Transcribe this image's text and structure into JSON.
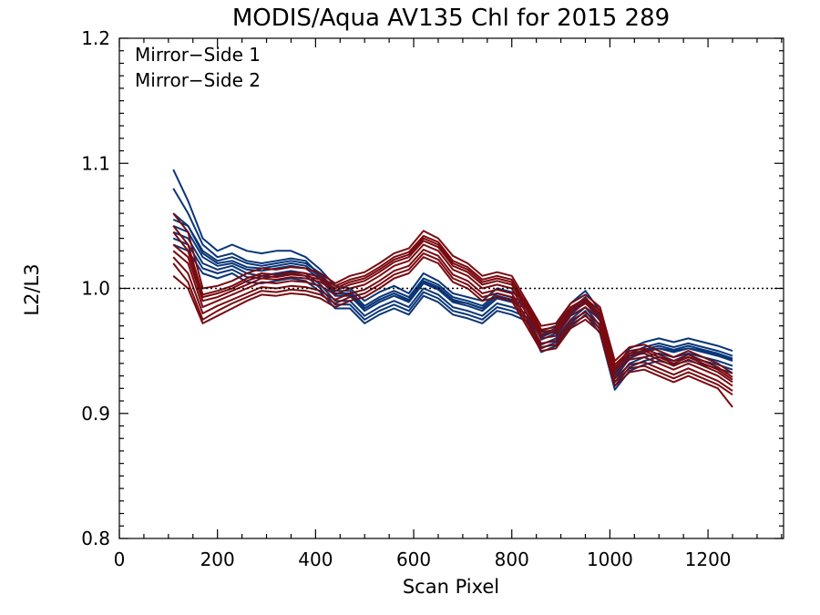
{
  "chart_data": {
    "type": "line",
    "title": "MODIS/Aqua AV135 Chl for 2015 289",
    "xlabel": "Scan Pixel",
    "ylabel": "L2/L3",
    "xlim": [
      0,
      1354
    ],
    "ylim": [
      0.8,
      1.2
    ],
    "xticks": [
      0,
      200,
      400,
      600,
      800,
      1000,
      1200
    ],
    "xtick_labels": [
      "0",
      "200",
      "400",
      "600",
      "800",
      "1000",
      "1200"
    ],
    "yticks": [
      0.8,
      0.9,
      1.0,
      1.1,
      1.2
    ],
    "ytick_labels": [
      "0.8",
      "0.9",
      "1.0",
      "1.1",
      "1.2"
    ],
    "reference_line": 1.0,
    "grid": false,
    "legend_position": "top-left",
    "legend": [
      {
        "label": "Mirror−Side 1",
        "color": "#0a3678"
      },
      {
        "label": "Mirror−Side 2",
        "color": "#7a0a10"
      }
    ],
    "x": [
      110,
      140,
      170,
      200,
      230,
      260,
      290,
      320,
      350,
      380,
      410,
      440,
      470,
      500,
      530,
      560,
      590,
      620,
      650,
      680,
      710,
      740,
      770,
      800,
      830,
      860,
      890,
      920,
      950,
      980,
      1010,
      1040,
      1070,
      1100,
      1130,
      1160,
      1190,
      1220,
      1250
    ],
    "series": [
      {
        "group": 1,
        "values": [
          1.045,
          1.04,
          1.02,
          1.015,
          1.018,
          1.012,
          1.01,
          1.012,
          1.014,
          1.012,
          1.003,
          0.99,
          0.99,
          0.978,
          0.985,
          0.99,
          0.985,
          1.0,
          0.995,
          0.985,
          0.982,
          0.978,
          0.988,
          0.985,
          0.98,
          0.955,
          0.96,
          0.975,
          0.985,
          0.97,
          0.925,
          0.94,
          0.945,
          0.948,
          0.945,
          0.948,
          0.945,
          0.942,
          0.938
        ]
      },
      {
        "group": 1,
        "values": [
          1.06,
          1.05,
          1.03,
          1.022,
          1.025,
          1.02,
          1.018,
          1.02,
          1.022,
          1.02,
          1.012,
          0.998,
          0.998,
          0.986,
          0.993,
          0.998,
          0.993,
          1.008,
          1.003,
          0.993,
          0.99,
          0.986,
          0.996,
          0.993,
          0.988,
          0.963,
          0.968,
          0.983,
          0.993,
          0.978,
          0.933,
          0.948,
          0.953,
          0.956,
          0.953,
          0.956,
          0.953,
          0.95,
          0.946
        ]
      },
      {
        "group": 1,
        "values": [
          1.035,
          1.03,
          1.012,
          1.008,
          1.012,
          1.005,
          1.004,
          1.006,
          1.008,
          1.006,
          0.997,
          0.984,
          0.984,
          0.972,
          0.979,
          0.984,
          0.979,
          0.994,
          0.989,
          0.979,
          0.976,
          0.972,
          0.982,
          0.979,
          0.974,
          0.949,
          0.954,
          0.969,
          0.979,
          0.964,
          0.919,
          0.934,
          0.939,
          0.942,
          0.939,
          0.942,
          0.939,
          0.936,
          0.932
        ]
      },
      {
        "group": 1,
        "values": [
          1.095,
          1.07,
          1.04,
          1.03,
          1.035,
          1.03,
          1.028,
          1.03,
          1.03,
          1.025,
          1.015,
          1.002,
          1.0,
          0.99,
          0.997,
          1.002,
          0.996,
          1.012,
          1.006,
          0.996,
          0.993,
          0.99,
          1.0,
          0.997,
          0.99,
          0.966,
          0.97,
          0.988,
          0.998,
          0.982,
          0.936,
          0.952,
          0.957,
          0.96,
          0.957,
          0.96,
          0.957,
          0.954,
          0.95
        ]
      },
      {
        "group": 1,
        "values": [
          1.05,
          1.045,
          1.025,
          1.018,
          1.02,
          1.015,
          1.014,
          1.016,
          1.018,
          1.016,
          1.007,
          0.994,
          0.994,
          0.982,
          0.989,
          0.994,
          0.989,
          1.004,
          0.999,
          0.989,
          0.986,
          0.982,
          0.992,
          0.989,
          0.984,
          0.959,
          0.964,
          0.979,
          0.989,
          0.974,
          0.929,
          0.944,
          0.949,
          0.952,
          0.949,
          0.952,
          0.949,
          0.946,
          0.942
        ]
      },
      {
        "group": 1,
        "values": [
          1.04,
          1.035,
          1.016,
          1.012,
          1.015,
          1.009,
          1.008,
          1.01,
          1.012,
          1.01,
          1.0,
          0.987,
          0.987,
          0.975,
          0.982,
          0.987,
          0.982,
          0.997,
          0.992,
          0.982,
          0.979,
          0.975,
          0.985,
          0.982,
          0.977,
          0.952,
          0.957,
          0.972,
          0.982,
          0.967,
          0.922,
          0.937,
          0.942,
          0.945,
          0.942,
          0.945,
          0.942,
          0.939,
          0.935
        ]
      },
      {
        "group": 1,
        "values": [
          1.08,
          1.06,
          1.035,
          1.025,
          1.028,
          1.022,
          1.02,
          1.022,
          1.024,
          1.022,
          1.01,
          0.996,
          0.996,
          0.984,
          0.991,
          0.996,
          0.991,
          1.006,
          1.001,
          0.991,
          0.988,
          0.984,
          0.994,
          0.991,
          0.986,
          0.961,
          0.966,
          0.981,
          0.991,
          0.976,
          0.931,
          0.946,
          0.951,
          0.954,
          0.951,
          0.954,
          0.951,
          0.948,
          0.944
        ]
      },
      {
        "group": 1,
        "values": [
          1.055,
          1.05,
          1.028,
          1.02,
          1.022,
          1.017,
          1.016,
          1.018,
          1.02,
          1.018,
          1.009,
          0.996,
          0.995,
          0.984,
          0.991,
          0.996,
          0.99,
          1.005,
          1.0,
          0.99,
          0.988,
          0.984,
          0.994,
          0.991,
          0.986,
          0.962,
          0.966,
          0.98,
          0.99,
          0.975,
          0.928,
          0.944,
          0.95,
          0.952,
          0.95,
          0.952,
          0.95,
          0.947,
          0.943
        ]
      },
      {
        "group": 2,
        "values": [
          1.03,
          1.02,
          0.985,
          0.99,
          0.995,
          1.0,
          1.005,
          1.004,
          1.006,
          1.005,
          1.002,
          0.995,
          1.0,
          1.003,
          1.01,
          1.018,
          1.022,
          1.035,
          1.03,
          1.015,
          1.01,
          1.0,
          1.003,
          1.0,
          0.98,
          0.96,
          0.962,
          0.978,
          0.985,
          0.975,
          0.932,
          0.943,
          0.945,
          0.94,
          0.935,
          0.94,
          0.935,
          0.93,
          0.922
        ]
      },
      {
        "group": 2,
        "values": [
          1.05,
          1.035,
          0.995,
          0.998,
          1.002,
          1.008,
          1.012,
          1.011,
          1.013,
          1.012,
          1.009,
          1.002,
          1.007,
          1.01,
          1.017,
          1.025,
          1.029,
          1.042,
          1.037,
          1.022,
          1.017,
          1.007,
          1.01,
          1.007,
          0.987,
          0.967,
          0.969,
          0.985,
          0.992,
          0.982,
          0.939,
          0.95,
          0.952,
          0.947,
          0.942,
          0.947,
          0.942,
          0.937,
          0.929
        ]
      },
      {
        "group": 2,
        "values": [
          1.02,
          1.005,
          0.975,
          0.982,
          0.988,
          0.993,
          0.998,
          0.997,
          0.999,
          0.998,
          0.995,
          0.988,
          0.993,
          0.996,
          1.003,
          1.011,
          1.015,
          1.028,
          1.023,
          1.008,
          1.003,
          0.993,
          0.996,
          0.993,
          0.973,
          0.953,
          0.955,
          0.971,
          0.978,
          0.968,
          0.925,
          0.936,
          0.938,
          0.933,
          0.928,
          0.933,
          0.928,
          0.923,
          0.915
        ]
      },
      {
        "group": 2,
        "values": [
          1.06,
          1.045,
          1.0,
          1.002,
          1.006,
          1.012,
          1.016,
          1.015,
          1.017,
          1.016,
          1.012,
          1.004,
          1.01,
          1.013,
          1.02,
          1.028,
          1.032,
          1.046,
          1.04,
          1.026,
          1.02,
          1.01,
          1.013,
          1.01,
          0.99,
          0.97,
          0.972,
          0.988,
          0.995,
          0.985,
          0.942,
          0.953,
          0.955,
          0.95,
          0.945,
          0.95,
          0.945,
          0.94,
          0.932
        ]
      },
      {
        "group": 2,
        "values": [
          1.035,
          1.025,
          0.99,
          0.993,
          0.998,
          1.003,
          1.008,
          1.007,
          1.009,
          1.008,
          1.005,
          0.998,
          1.003,
          1.006,
          1.013,
          1.021,
          1.025,
          1.038,
          1.033,
          1.018,
          1.013,
          1.003,
          1.006,
          1.003,
          0.983,
          0.963,
          0.965,
          0.981,
          0.988,
          0.978,
          0.935,
          0.946,
          0.948,
          0.943,
          0.938,
          0.943,
          0.938,
          0.933,
          0.925
        ]
      },
      {
        "group": 2,
        "values": [
          1.025,
          1.012,
          0.98,
          0.986,
          0.991,
          0.996,
          1.001,
          1.0,
          1.002,
          1.001,
          0.998,
          0.991,
          0.996,
          0.999,
          1.006,
          1.014,
          1.018,
          1.031,
          1.026,
          1.011,
          1.006,
          0.996,
          0.999,
          0.996,
          0.976,
          0.956,
          0.958,
          0.974,
          0.981,
          0.971,
          0.928,
          0.939,
          0.941,
          0.936,
          0.931,
          0.936,
          0.931,
          0.926,
          0.918
        ]
      },
      {
        "group": 2,
        "values": [
          1.045,
          1.03,
          0.993,
          0.996,
          1.0,
          1.006,
          1.01,
          1.009,
          1.011,
          1.01,
          1.007,
          1.0,
          1.005,
          1.008,
          1.015,
          1.023,
          1.027,
          1.04,
          1.035,
          1.02,
          1.015,
          1.005,
          1.008,
          1.005,
          0.985,
          0.965,
          0.967,
          0.983,
          0.99,
          0.98,
          0.937,
          0.948,
          0.95,
          0.945,
          0.94,
          0.945,
          0.94,
          0.935,
          0.927
        ]
      },
      {
        "group": 2,
        "values": [
          1.01,
          1.0,
          0.972,
          0.978,
          0.984,
          0.99,
          0.995,
          0.994,
          0.996,
          0.995,
          0.992,
          0.985,
          0.99,
          0.993,
          1.0,
          1.008,
          1.012,
          1.025,
          1.02,
          1.005,
          1.0,
          0.99,
          0.993,
          0.99,
          0.97,
          0.95,
          0.952,
          0.968,
          0.975,
          0.965,
          0.922,
          0.933,
          0.935,
          0.93,
          0.925,
          0.93,
          0.925,
          0.92,
          0.905
        ]
      }
    ]
  }
}
